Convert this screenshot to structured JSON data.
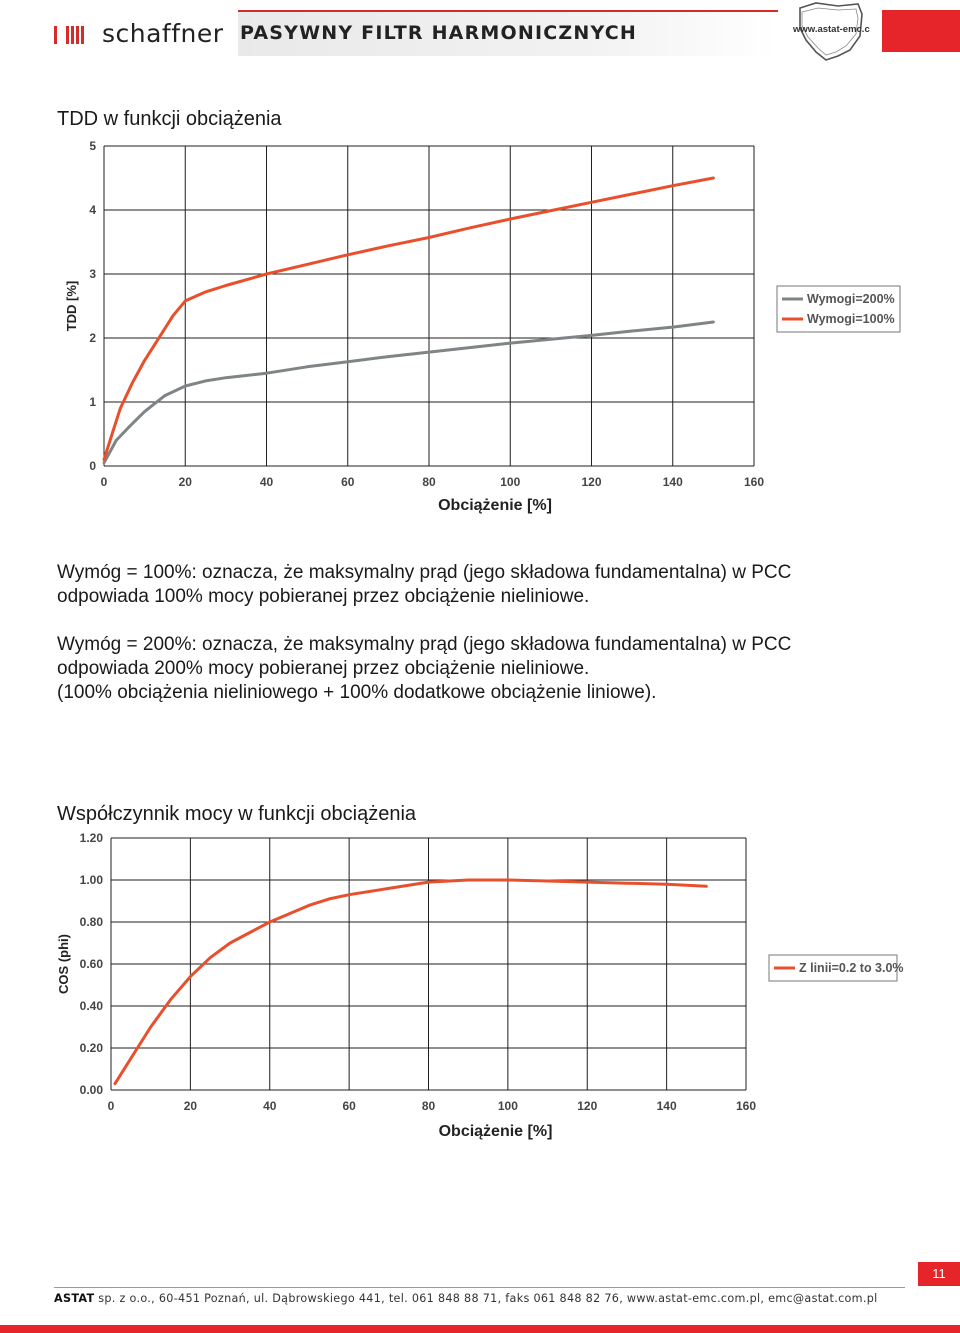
{
  "header": {
    "brand": "schaffner",
    "title": "PASYWNY FILTR HARMONICZNYCH",
    "logo_text": "www.astat-emc.com.pl"
  },
  "section1": {
    "title": "TDD w funkcji obciążenia"
  },
  "paragraphs": {
    "p1": [
      "Wymóg = 100%: oznacza, że maksymalny prąd (jego składowa fundamentalna) w PCC",
      "odpowiada 100% mocy pobieranej przez obciążenie nieliniowe."
    ],
    "p2": [
      "Wymóg = 200%: oznacza, że maksymalny prąd (jego składowa fundamentalna) w PCC",
      "odpowiada 200% mocy pobieranej przez obciążenie nieliniowe.",
      "(100% obciążenia nieliniowego + 100% dodatkowe obciążenie liniowe)."
    ]
  },
  "section2": {
    "title": "Współczynnik mocy w funkcji obciążenia"
  },
  "chart_data": [
    {
      "type": "line",
      "title": "",
      "xlabel": "Obciążenie [%]",
      "ylabel": "TDD [%]",
      "xlim": [
        0,
        160
      ],
      "ylim": [
        0,
        5
      ],
      "xticks": [
        "0",
        "20",
        "40",
        "60",
        "80",
        "100",
        "120",
        "140",
        "160"
      ],
      "yticks": [
        "0",
        "1",
        "2",
        "3",
        "4",
        "5"
      ],
      "grid": true,
      "legend": "right",
      "series": [
        {
          "name": "Wymogi=200%",
          "color": "#7f8487",
          "x": [
            0,
            3,
            6,
            10,
            15,
            20,
            25,
            30,
            40,
            50,
            60,
            70,
            80,
            90,
            100,
            110,
            120,
            130,
            140,
            150
          ],
          "y": [
            0.05,
            0.4,
            0.6,
            0.85,
            1.1,
            1.25,
            1.33,
            1.38,
            1.45,
            1.55,
            1.63,
            1.71,
            1.78,
            1.85,
            1.92,
            1.98,
            2.04,
            2.11,
            2.17,
            2.25
          ]
        },
        {
          "name": "Wymogi=100%",
          "color": "#e8502d",
          "x": [
            0,
            2,
            4,
            7,
            10,
            14,
            17,
            20,
            25,
            30,
            40,
            50,
            60,
            70,
            80,
            90,
            100,
            110,
            120,
            130,
            140,
            150
          ],
          "y": [
            0.1,
            0.5,
            0.9,
            1.3,
            1.65,
            2.05,
            2.35,
            2.58,
            2.72,
            2.82,
            3.0,
            3.15,
            3.3,
            3.44,
            3.57,
            3.72,
            3.86,
            3.99,
            4.12,
            4.25,
            4.38,
            4.5
          ]
        }
      ]
    },
    {
      "type": "line",
      "title": "",
      "xlabel": "Obciążenie [%]",
      "ylabel": "COS (phi)",
      "xlim": [
        0,
        160
      ],
      "ylim": [
        0,
        1.2
      ],
      "xticks": [
        "0",
        "20",
        "40",
        "60",
        "80",
        "100",
        "120",
        "140",
        "160"
      ],
      "yticks": [
        "0.00",
        "0.20",
        "0.40",
        "0.60",
        "0.80",
        "1.00",
        "1.20"
      ],
      "grid": true,
      "legend": "right",
      "series": [
        {
          "name": "Z linii=0.2 to 3.0%",
          "color": "#e8502d",
          "x": [
            1,
            5,
            10,
            15,
            20,
            25,
            30,
            35,
            40,
            45,
            50,
            55,
            60,
            70,
            80,
            90,
            100,
            110,
            120,
            130,
            140,
            150
          ],
          "y": [
            0.03,
            0.15,
            0.3,
            0.43,
            0.54,
            0.63,
            0.7,
            0.75,
            0.8,
            0.84,
            0.88,
            0.91,
            0.93,
            0.96,
            0.99,
            1.0,
            1.0,
            0.995,
            0.99,
            0.985,
            0.98,
            0.97
          ]
        }
      ]
    }
  ],
  "footer": {
    "company": "ASTAT",
    "details": " sp. z o.o., 60-451 Poznań, ul. Dąbrowskiego 441, tel. 061 848 88 71, faks 061 848 82 76, www.astat-emc.com.pl, emc@astat.com.pl",
    "page": "11"
  }
}
